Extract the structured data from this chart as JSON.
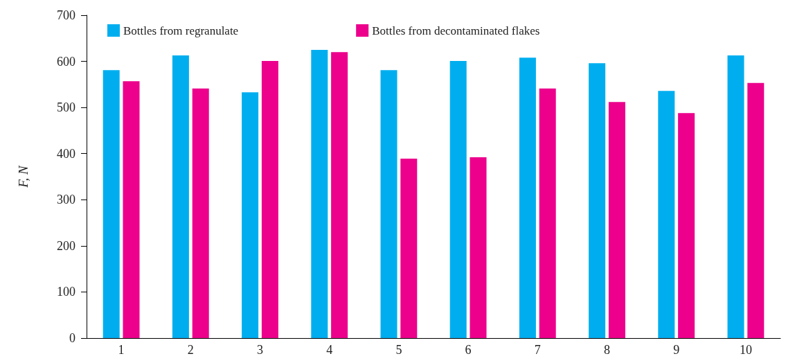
{
  "chart_data": {
    "type": "bar",
    "ylabel": "F, N",
    "categories": [
      "1",
      "2",
      "3",
      "4",
      "5",
      "6",
      "7",
      "8",
      "9",
      "10"
    ],
    "series": [
      {
        "name": "Bottles from regranulate",
        "color": "#00aeef",
        "values": [
          581,
          613,
          533,
          625,
          581,
          601,
          608,
          596,
          536,
          613
        ]
      },
      {
        "name": "Bottles from decontaminated flakes",
        "color": "#ec008c",
        "values": [
          557,
          541,
          601,
          620,
          389,
          392,
          541,
          512,
          488,
          553
        ]
      }
    ],
    "ylim": [
      0,
      700
    ],
    "yticks": [
      0,
      100,
      200,
      300,
      400,
      500,
      600,
      700
    ],
    "grid": false,
    "legend": "top"
  }
}
